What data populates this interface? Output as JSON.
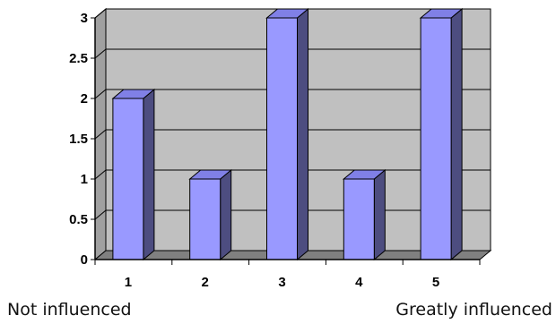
{
  "chart_data": {
    "type": "bar",
    "style": "3d-column",
    "categories": [
      "1",
      "2",
      "3",
      "4",
      "5"
    ],
    "values": [
      2,
      1,
      3,
      1,
      3
    ],
    "title": "",
    "xlabel": "",
    "ylabel": "",
    "ylim": [
      0,
      3
    ],
    "yticks": [
      "0",
      "0.5",
      "1",
      "1.5",
      "2",
      "2.5",
      "3"
    ],
    "ytick_values": [
      0,
      0.5,
      1,
      1.5,
      2,
      2.5,
      3
    ],
    "grid": true,
    "legend": "none",
    "scale_left_label": "Not influenced",
    "scale_right_label": "Greatly influenced",
    "colors": {
      "bar_front": "#9999ff",
      "bar_side": "#4d4d80",
      "bar_top": "#8080e6",
      "wall": "#c0c0c0",
      "floor": "#808080",
      "grid": "#000000"
    }
  }
}
